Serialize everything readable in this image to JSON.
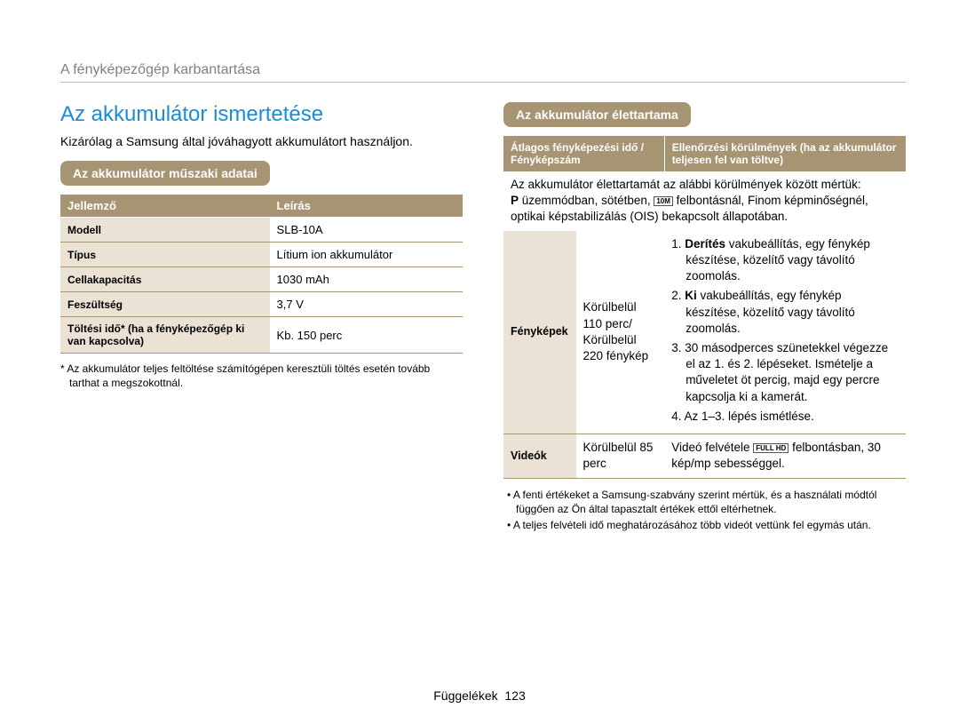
{
  "breadcrumb": "A fényképezőgép karbantartása",
  "title": "Az akkumulátor ismertetése",
  "intro": "Kizárólag a Samsung által jóváhagyott akkumulátort használjon.",
  "spec": {
    "heading": "Az akkumulátor műszaki adatai",
    "header_left": "Jellemző",
    "header_right": "Leírás",
    "rows": [
      {
        "label": "Modell",
        "value": "SLB-10A"
      },
      {
        "label": "Típus",
        "value": "Lítium ion akkumulátor"
      },
      {
        "label": "Cellakapacitás",
        "value": "1030 mAh"
      },
      {
        "label": "Feszültség",
        "value": "3,7 V"
      },
      {
        "label": "Töltési idő* (ha a fényképezőgép ki van kapcsolva)",
        "value": "Kb. 150 perc"
      }
    ],
    "footnote": "* Az akkumulátor teljes feltöltése számítógépen keresztüli töltés esetén tovább tarthat a megszokottnál."
  },
  "life": {
    "heading": "Az akkumulátor élettartama",
    "header_left": "Átlagos fényképezési idő / Fényképszám",
    "header_right": "Ellenőrzési körülmények (ha az akkumulátor teljesen fel van töltve)",
    "conditions_intro_1": "Az akkumulátor élettartamát az alábbi körülmények között mértük:",
    "conditions_intro_2a": " üzemmódban, sötétben, ",
    "conditions_intro_2b": " felbontásnál, Finom képminőségnél, optikai képstabilizálás (OIS) bekapcsolt állapotában.",
    "photos_label": "Fényképek",
    "photos_mid": "Körülbelül 110 perc/ Körülbelül 220 fénykép",
    "step1_b": "Derítés",
    "step1": " vakubeállítás, egy fénykép készítése, közelítő vagy távolító zoomolás.",
    "step2_b": "Ki",
    "step2": " vakubeállítás, egy fénykép készítése, közelítő vagy távolító zoomolás.",
    "step3": "3. 30 másodperces szünetekkel végezze el az 1. és 2. lépéseket. Ismételje a műveletet öt percig, majd egy percre kapcsolja ki a kamerát.",
    "step4": "4. Az 1–3. lépés ismétlése.",
    "videos_label": "Videók",
    "videos_mid": "Körülbelül 85 perc",
    "videos_right_a": "Videó felvétele ",
    "videos_right_b": " felbontásban, 30 kép/mp sebességgel.",
    "bullets": [
      "A fenti értékeket a Samsung-szabvány szerint mértük, és a használati módtól függően az Ön által tapasztalt értékek ettől eltérhetnek.",
      "A teljes felvételi idő meghatározásához több videót vettünk fel egymás után."
    ]
  },
  "footer_label": "Függelékek",
  "footer_page": "123",
  "icons": {
    "p": "P",
    "res": "10M",
    "fullhd": "FULL HD"
  },
  "colors": {
    "accent_tan": "#a69473",
    "accent_tan_light": "#eae3d5",
    "title_blue": "#1a8cd8",
    "breadcrumb_grey": "#808080"
  }
}
